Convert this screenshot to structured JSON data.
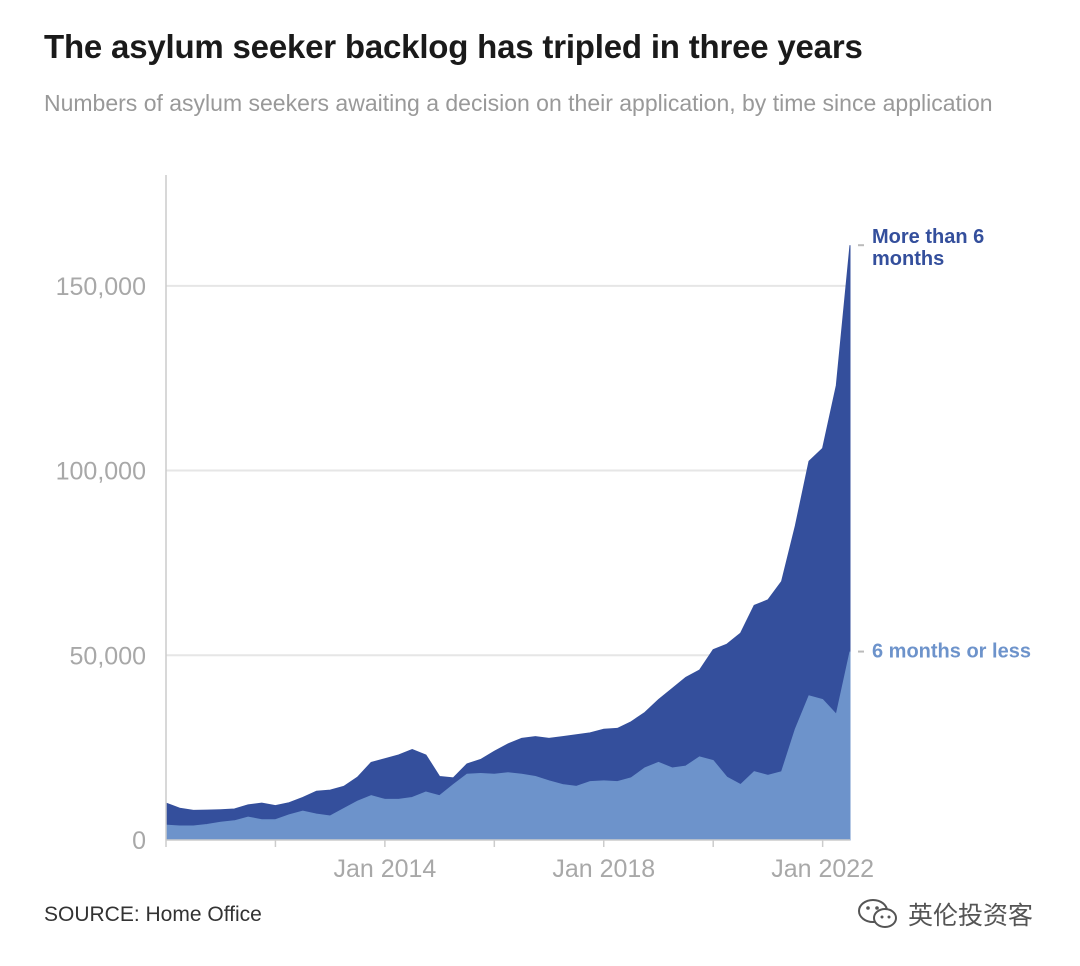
{
  "title": "The asylum seeker backlog has tripled in three years",
  "subtitle": "Numbers of asylum seekers awaiting a decision on their application, by time since application",
  "source": "SOURCE: Home Office",
  "watermark": "英伦投资客",
  "colors": {
    "long_wait": "#344f9c",
    "short_wait": "#6d93cb",
    "grid": "#e6e6e6",
    "axis_text": "#a8a8a8"
  },
  "chart_data": {
    "type": "area",
    "stacked": true,
    "x_tick_labels": [
      "Jan 2014",
      "Jan 2018",
      "Jan 2022"
    ],
    "x_tick_values": [
      2014.0,
      2018.0,
      2022.0
    ],
    "y_tick_labels": [
      "0",
      "50,000",
      "100,000",
      "150,000"
    ],
    "y_tick_values": [
      0,
      50000,
      100000,
      150000
    ],
    "xlim": [
      2010.0,
      2022.5
    ],
    "ylim": [
      0,
      180000
    ],
    "grid": true,
    "x": [
      2010.0,
      2010.25,
      2010.5,
      2010.75,
      2011.0,
      2011.25,
      2011.5,
      2011.75,
      2012.0,
      2012.25,
      2012.5,
      2012.75,
      2013.0,
      2013.25,
      2013.5,
      2013.75,
      2014.0,
      2014.25,
      2014.5,
      2014.75,
      2015.0,
      2015.25,
      2015.5,
      2015.75,
      2016.0,
      2016.25,
      2016.5,
      2016.75,
      2017.0,
      2017.25,
      2017.5,
      2017.75,
      2018.0,
      2018.25,
      2018.5,
      2018.75,
      2019.0,
      2019.25,
      2019.5,
      2019.75,
      2020.0,
      2020.25,
      2020.5,
      2020.75,
      2021.0,
      2021.25,
      2021.5,
      2021.75,
      2022.0,
      2022.25,
      2022.5
    ],
    "series": [
      {
        "name": "6 months or less",
        "color": "#6d93cb",
        "values": [
          4000,
          3800,
          3800,
          4200,
          4800,
          5200,
          6200,
          5500,
          5500,
          6800,
          7800,
          7000,
          6500,
          8500,
          10500,
          12000,
          11000,
          11000,
          11500,
          13000,
          12000,
          15000,
          17800,
          18000,
          17800,
          18200,
          17800,
          17200,
          16000,
          15000,
          14500,
          15800,
          16000,
          15800,
          16800,
          19500,
          21000,
          19500,
          20000,
          22500,
          21500,
          17000,
          15000,
          18500,
          17500,
          18500,
          30000,
          39000,
          38000,
          34000,
          51000
        ]
      },
      {
        "name": "More than 6 months",
        "color": "#344f9c",
        "values": [
          6000,
          4800,
          4200,
          3900,
          3400,
          3200,
          3300,
          4500,
          3800,
          3300,
          3700,
          6200,
          7000,
          6000,
          6500,
          9000,
          11000,
          12000,
          13000,
          10000,
          5200,
          1800,
          2800,
          3800,
          6200,
          7800,
          9700,
          10800,
          11500,
          13000,
          14000,
          13200,
          14000,
          14400,
          15200,
          15000,
          17000,
          21500,
          24000,
          23500,
          30000,
          36000,
          41000,
          45000,
          47500,
          51500,
          55000,
          63500,
          68000,
          89000,
          110000
        ]
      }
    ],
    "annotations": [
      {
        "text": "More than 6 months",
        "lines": [
          "More than 6",
          "months"
        ]
      },
      {
        "text": "6 months or less",
        "lines": [
          "6 months or less"
        ]
      }
    ]
  }
}
